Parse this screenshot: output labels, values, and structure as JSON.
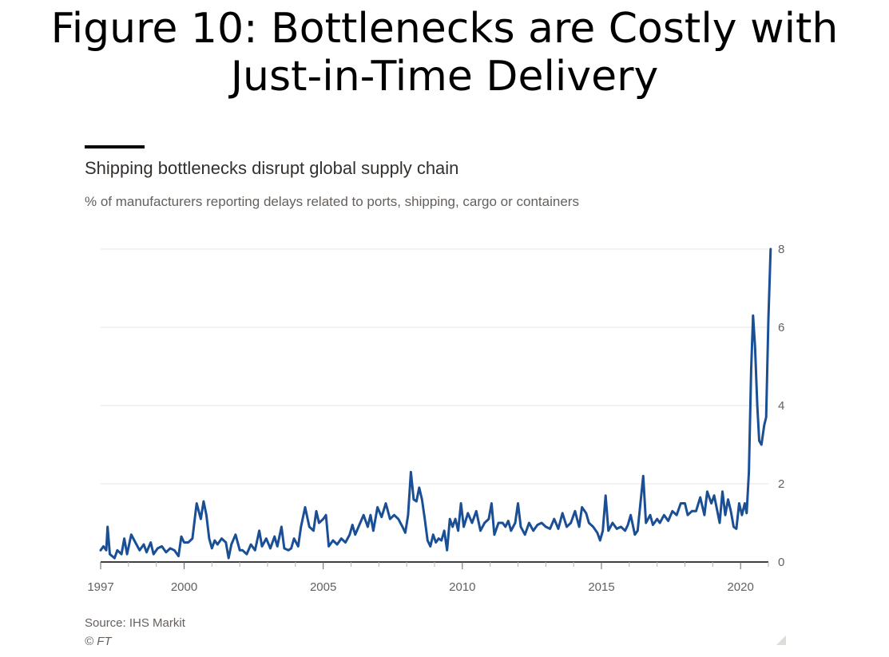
{
  "slide": {
    "title_line1": "Figure 10: Bottlenecks are Costly with",
    "title_line2": "Just-in-Time Delivery"
  },
  "chart_data": {
    "type": "line",
    "title": "Shipping bottlenecks disrupt global supply chain",
    "subtitle": "% of manufacturers reporting delays related to ports, shipping, cargo or containers",
    "xlabel": "",
    "ylabel": "",
    "xlim": [
      1997,
      2021
    ],
    "ylim": [
      0,
      8
    ],
    "y_ticks": [
      0,
      2,
      4,
      6,
      8
    ],
    "x_tick_labels": [
      {
        "label": "1997",
        "x": 1997
      },
      {
        "label": "2000",
        "x": 2000
      },
      {
        "label": "2005",
        "x": 2005
      },
      {
        "label": "2010",
        "x": 2010
      },
      {
        "label": "2015",
        "x": 2015
      },
      {
        "label": "2020",
        "x": 2020
      }
    ],
    "grid": "horizontal",
    "y_axis_side": "right",
    "line_color": "#1a4f96",
    "series": [
      {
        "points": [
          [
            1997.0,
            0.3
          ],
          [
            1997.1,
            0.4
          ],
          [
            1997.2,
            0.3
          ],
          [
            1997.25,
            0.9
          ],
          [
            1997.33,
            0.2
          ],
          [
            1997.5,
            0.1
          ],
          [
            1997.6,
            0.3
          ],
          [
            1997.75,
            0.2
          ],
          [
            1997.85,
            0.6
          ],
          [
            1997.95,
            0.2
          ],
          [
            1998.1,
            0.7
          ],
          [
            1998.25,
            0.5
          ],
          [
            1998.4,
            0.3
          ],
          [
            1998.55,
            0.45
          ],
          [
            1998.65,
            0.25
          ],
          [
            1998.8,
            0.5
          ],
          [
            1998.9,
            0.2
          ],
          [
            1999.05,
            0.35
          ],
          [
            1999.2,
            0.4
          ],
          [
            1999.35,
            0.25
          ],
          [
            1999.5,
            0.35
          ],
          [
            1999.65,
            0.3
          ],
          [
            1999.8,
            0.15
          ],
          [
            1999.9,
            0.65
          ],
          [
            2000.0,
            0.5
          ],
          [
            2000.15,
            0.5
          ],
          [
            2000.3,
            0.6
          ],
          [
            2000.45,
            1.5
          ],
          [
            2000.6,
            1.1
          ],
          [
            2000.7,
            1.55
          ],
          [
            2000.8,
            1.2
          ],
          [
            2000.9,
            0.6
          ],
          [
            2001.0,
            0.35
          ],
          [
            2001.1,
            0.55
          ],
          [
            2001.2,
            0.45
          ],
          [
            2001.35,
            0.6
          ],
          [
            2001.5,
            0.5
          ],
          [
            2001.6,
            0.1
          ],
          [
            2001.7,
            0.45
          ],
          [
            2001.85,
            0.7
          ],
          [
            2002.0,
            0.3
          ],
          [
            2002.1,
            0.3
          ],
          [
            2002.25,
            0.2
          ],
          [
            2002.4,
            0.45
          ],
          [
            2002.55,
            0.3
          ],
          [
            2002.7,
            0.8
          ],
          [
            2002.8,
            0.4
          ],
          [
            2002.95,
            0.6
          ],
          [
            2003.1,
            0.35
          ],
          [
            2003.25,
            0.65
          ],
          [
            2003.35,
            0.4
          ],
          [
            2003.5,
            0.9
          ],
          [
            2003.6,
            0.35
          ],
          [
            2003.75,
            0.3
          ],
          [
            2003.85,
            0.35
          ],
          [
            2003.95,
            0.6
          ],
          [
            2004.1,
            0.4
          ],
          [
            2004.2,
            0.9
          ],
          [
            2004.35,
            1.4
          ],
          [
            2004.5,
            0.9
          ],
          [
            2004.65,
            0.8
          ],
          [
            2004.75,
            1.3
          ],
          [
            2004.85,
            1.0
          ],
          [
            2005.0,
            1.1
          ],
          [
            2005.1,
            1.2
          ],
          [
            2005.2,
            0.4
          ],
          [
            2005.35,
            0.55
          ],
          [
            2005.5,
            0.45
          ],
          [
            2005.65,
            0.6
          ],
          [
            2005.8,
            0.5
          ],
          [
            2005.95,
            0.7
          ],
          [
            2006.05,
            0.95
          ],
          [
            2006.15,
            0.7
          ],
          [
            2006.3,
            0.95
          ],
          [
            2006.45,
            1.2
          ],
          [
            2006.6,
            0.9
          ],
          [
            2006.7,
            1.2
          ],
          [
            2006.8,
            0.8
          ],
          [
            2006.95,
            1.4
          ],
          [
            2007.1,
            1.15
          ],
          [
            2007.25,
            1.5
          ],
          [
            2007.4,
            1.1
          ],
          [
            2007.55,
            1.2
          ],
          [
            2007.7,
            1.1
          ],
          [
            2007.85,
            0.9
          ],
          [
            2007.95,
            0.75
          ],
          [
            2008.05,
            1.2
          ],
          [
            2008.15,
            2.3
          ],
          [
            2008.25,
            1.6
          ],
          [
            2008.35,
            1.55
          ],
          [
            2008.45,
            1.9
          ],
          [
            2008.55,
            1.6
          ],
          [
            2008.65,
            1.1
          ],
          [
            2008.75,
            0.55
          ],
          [
            2008.85,
            0.4
          ],
          [
            2008.95,
            0.7
          ],
          [
            2009.05,
            0.5
          ],
          [
            2009.15,
            0.6
          ],
          [
            2009.25,
            0.55
          ],
          [
            2009.35,
            0.8
          ],
          [
            2009.45,
            0.3
          ],
          [
            2009.55,
            1.1
          ],
          [
            2009.65,
            0.9
          ],
          [
            2009.75,
            1.1
          ],
          [
            2009.85,
            0.8
          ],
          [
            2009.95,
            1.5
          ],
          [
            2010.05,
            0.9
          ],
          [
            2010.2,
            1.25
          ],
          [
            2010.35,
            1.0
          ],
          [
            2010.5,
            1.3
          ],
          [
            2010.65,
            0.8
          ],
          [
            2010.8,
            1.0
          ],
          [
            2010.95,
            1.1
          ],
          [
            2011.05,
            1.5
          ],
          [
            2011.15,
            0.7
          ],
          [
            2011.3,
            1.0
          ],
          [
            2011.45,
            1.0
          ],
          [
            2011.55,
            0.9
          ],
          [
            2011.65,
            1.05
          ],
          [
            2011.75,
            0.8
          ],
          [
            2011.9,
            1.0
          ],
          [
            2012.0,
            1.5
          ],
          [
            2012.1,
            0.9
          ],
          [
            2012.25,
            0.7
          ],
          [
            2012.4,
            1.0
          ],
          [
            2012.55,
            0.8
          ],
          [
            2012.7,
            0.95
          ],
          [
            2012.85,
            1.0
          ],
          [
            2013.0,
            0.9
          ],
          [
            2013.15,
            0.85
          ],
          [
            2013.3,
            1.1
          ],
          [
            2013.45,
            0.85
          ],
          [
            2013.6,
            1.25
          ],
          [
            2013.75,
            0.9
          ],
          [
            2013.9,
            1.0
          ],
          [
            2014.05,
            1.3
          ],
          [
            2014.2,
            0.9
          ],
          [
            2014.3,
            1.4
          ],
          [
            2014.45,
            1.25
          ],
          [
            2014.55,
            1.0
          ],
          [
            2014.7,
            0.9
          ],
          [
            2014.85,
            0.75
          ],
          [
            2014.95,
            0.55
          ],
          [
            2015.05,
            0.8
          ],
          [
            2015.15,
            1.7
          ],
          [
            2015.25,
            0.8
          ],
          [
            2015.4,
            1.0
          ],
          [
            2015.55,
            0.85
          ],
          [
            2015.7,
            0.9
          ],
          [
            2015.85,
            0.8
          ],
          [
            2015.95,
            0.95
          ],
          [
            2016.05,
            1.2
          ],
          [
            2016.2,
            0.7
          ],
          [
            2016.3,
            0.8
          ],
          [
            2016.4,
            1.5
          ],
          [
            2016.5,
            2.2
          ],
          [
            2016.6,
            1.0
          ],
          [
            2016.75,
            1.2
          ],
          [
            2016.85,
            0.95
          ],
          [
            2017.0,
            1.1
          ],
          [
            2017.1,
            1.0
          ],
          [
            2017.25,
            1.2
          ],
          [
            2017.4,
            1.05
          ],
          [
            2017.55,
            1.3
          ],
          [
            2017.7,
            1.2
          ],
          [
            2017.85,
            1.5
          ],
          [
            2018.0,
            1.5
          ],
          [
            2018.1,
            1.2
          ],
          [
            2018.25,
            1.3
          ],
          [
            2018.4,
            1.3
          ],
          [
            2018.55,
            1.65
          ],
          [
            2018.7,
            1.2
          ],
          [
            2018.8,
            1.8
          ],
          [
            2018.95,
            1.5
          ],
          [
            2019.05,
            1.7
          ],
          [
            2019.15,
            1.35
          ],
          [
            2019.25,
            1.0
          ],
          [
            2019.35,
            1.8
          ],
          [
            2019.45,
            1.2
          ],
          [
            2019.55,
            1.6
          ],
          [
            2019.65,
            1.3
          ],
          [
            2019.75,
            0.9
          ],
          [
            2019.85,
            0.85
          ],
          [
            2019.95,
            1.5
          ],
          [
            2020.05,
            1.2
          ],
          [
            2020.15,
            1.5
          ],
          [
            2020.22,
            1.25
          ],
          [
            2020.3,
            2.3
          ],
          [
            2020.38,
            4.9
          ],
          [
            2020.45,
            6.3
          ],
          [
            2020.52,
            5.5
          ],
          [
            2020.6,
            4.0
          ],
          [
            2020.67,
            3.1
          ],
          [
            2020.75,
            3.0
          ],
          [
            2020.85,
            3.5
          ],
          [
            2020.92,
            3.7
          ],
          [
            2021.0,
            6.2
          ],
          [
            2021.08,
            8.0
          ]
        ]
      }
    ]
  },
  "footer": {
    "source": "Source: IHS Markit",
    "copyright": "© FT"
  }
}
